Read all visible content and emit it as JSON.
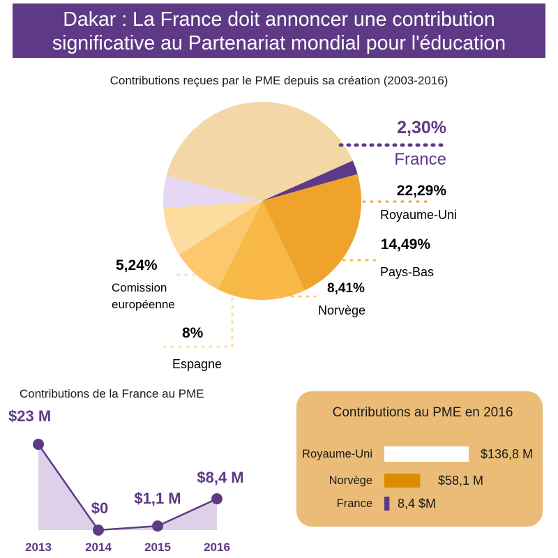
{
  "header": {
    "line1": "Dakar : La France doit annoncer une contribution",
    "line2": "significative au Partenariat mondial pour l'éducation"
  },
  "colors": {
    "purple": "#5e3a86",
    "purple_light": "#e6d7f4",
    "pie_large": "#f3d7a7",
    "orange": "#f0a32a",
    "orange_mid": "#f8b846",
    "orange_light": "#fbc86d",
    "espagne": "#fcdc9f",
    "tan_box": "#ebbc77",
    "norway_bar": "#dc8b00"
  },
  "chart_data": [
    {
      "type": "pie",
      "title": "Contributions reçues par le PME depuis sa création (2003-2016)",
      "slices": [
        {
          "label": "France",
          "value_label": "2,30%",
          "value": 2.3,
          "color": "#5e3a86"
        },
        {
          "label": "Royaume-Uni",
          "value_label": "22,29%",
          "value": 22.29,
          "color": "#f0a32a"
        },
        {
          "label": "Pays-Bas",
          "value_label": "14,49%",
          "value": 14.49,
          "color": "#f8b846"
        },
        {
          "label": "Norvège",
          "value_label": "8,41%",
          "value": 8.41,
          "color": "#fbc86d"
        },
        {
          "label": "Espagne",
          "value_label": "8%",
          "value": 8.0,
          "color": "#fcdc9f"
        },
        {
          "label": "Comission européenne",
          "value_label": "5,24%",
          "value": 5.24,
          "color": "#e6d7f4"
        },
        {
          "label": "",
          "value_label": "",
          "value": 39.27,
          "color": "#f3d7a7"
        }
      ]
    },
    {
      "type": "area",
      "title": "Contributions de la France au PME",
      "x": [
        "2013",
        "2014",
        "2015",
        "2016"
      ],
      "values": [
        23,
        0,
        1.1,
        8.4
      ],
      "value_labels": [
        "$23 M",
        "$0",
        "$1,1 M",
        "$8,4 M"
      ],
      "ylim": [
        0,
        23
      ],
      "color": "#5e3a86",
      "fill": "#ddd0e8"
    },
    {
      "type": "bar",
      "orientation": "horizontal",
      "title": "Contributions au PME en 2016",
      "categories": [
        "Royaume-Uni",
        "Norvège",
        "France"
      ],
      "values": [
        136.8,
        58.1,
        8.4
      ],
      "value_labels": [
        "$136,8 M",
        "$58,1 M",
        "8,4 $M"
      ],
      "colors": [
        "#ffffff",
        "#dc8b00",
        "#5e3a86"
      ]
    }
  ]
}
